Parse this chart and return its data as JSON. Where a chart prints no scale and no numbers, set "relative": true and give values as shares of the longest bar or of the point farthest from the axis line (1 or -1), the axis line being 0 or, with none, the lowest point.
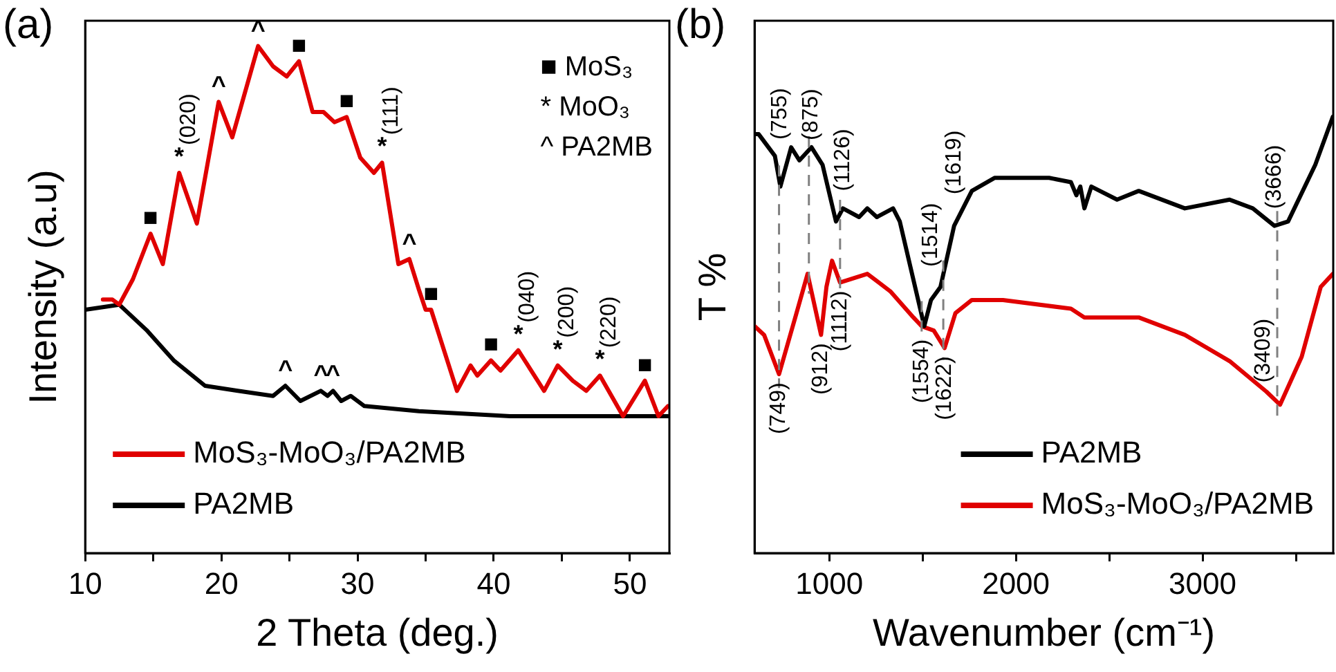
{
  "chart_data": [
    {
      "type": "line",
      "title": "(a)",
      "xlabel": "2 Theta (deg.)",
      "ylabel": "Intensity (a.u)",
      "relative": true,
      "legend": "bottom left",
      "xlim": [
        10,
        52.9
      ],
      "xticks": [
        10,
        {
          "value": 15,
          "label": null
        },
        20,
        {
          "value": 25,
          "label": null
        },
        30,
        {
          "value": 35,
          "label": null
        },
        40,
        {
          "value": 45,
          "label": null
        },
        50
      ],
      "series": [
        {
          "name": "MoS₃-MoO₃/PA2MB",
          "color": "#e00000",
          "x": [
            11.3,
            12,
            12.5,
            13.5,
            14.8,
            15.7,
            16.9,
            18.2,
            19.8,
            20.8,
            22.7,
            23.8,
            24.8,
            25.7,
            26.7,
            27.5,
            28.3,
            29.2,
            30.2,
            31.2,
            31.8,
            33,
            33.8,
            34.5,
            35,
            35.4,
            37.3,
            38.3,
            38.8,
            39.8,
            40.5,
            41.8,
            43.7,
            44.7,
            45.8,
            46.8,
            47.8,
            49.5,
            51.1,
            52.1,
            52.8
          ],
          "values": [
            0.5,
            0.5,
            0.49,
            0.54,
            0.63,
            0.57,
            0.75,
            0.65,
            0.89,
            0.82,
            1,
            0.96,
            0.94,
            0.97,
            0.87,
            0.87,
            0.85,
            0.86,
            0.78,
            0.75,
            0.77,
            0.57,
            0.58,
            0.52,
            0.48,
            0.48,
            0.32,
            0.37,
            0.35,
            0.38,
            0.36,
            0.4,
            0.32,
            0.37,
            0.34,
            0.32,
            0.35,
            0.27,
            0.34,
            0.27,
            0.29
          ]
        },
        {
          "name": "PA2MB",
          "color": "#000000",
          "x": [
            10,
            12.5,
            14.5,
            16.5,
            18.8,
            21.2,
            23.8,
            24.7,
            25.8,
            27.3,
            27.8,
            28.2,
            28.8,
            29.5,
            30.5,
            34.5,
            41.2,
            52.8
          ],
          "values": [
            0.48,
            0.49,
            0.44,
            0.38,
            0.33,
            0.32,
            0.31,
            0.33,
            0.3,
            0.32,
            0.31,
            0.32,
            0.3,
            0.31,
            0.29,
            0.28,
            0.27,
            0.27
          ]
        }
      ],
      "annotations": [
        "■ MoS₃",
        "* MoO₃",
        "^ PA2MB",
        {
          "text": "■",
          "x": 14.8,
          "y": 0.63
        },
        {
          "text": "*",
          "x": 16.9,
          "y": 0.75
        },
        {
          "text": "(020)",
          "x": 16.9,
          "y": 0.75
        },
        {
          "text": "^",
          "x": 19.8,
          "y": 0.89
        },
        {
          "text": "^",
          "x": 22.7,
          "y": 1
        },
        {
          "text": "■",
          "x": 25.7,
          "y": 0.97
        },
        {
          "text": "■",
          "x": 29.2,
          "y": 0.86
        },
        {
          "text": "*",
          "x": 31.8,
          "y": 0.77
        },
        {
          "text": "(111)",
          "x": 31.8,
          "y": 0.77
        },
        {
          "text": "^",
          "x": 33.8,
          "y": 0.58
        },
        {
          "text": "■",
          "x": 35.4,
          "y": 0.48
        },
        {
          "text": "■",
          "x": 39.8,
          "y": 0.38
        },
        {
          "text": "*",
          "x": 41.8,
          "y": 0.4
        },
        {
          "text": "(040)",
          "x": 41.8,
          "y": 0.4
        },
        {
          "text": "*",
          "x": 44.7,
          "y": 0.37
        },
        {
          "text": "(200)",
          "x": 44.7,
          "y": 0.37
        },
        {
          "text": "*",
          "x": 47.8,
          "y": 0.35
        },
        {
          "text": "(220)",
          "x": 47.8,
          "y": 0.35
        },
        {
          "text": "■",
          "x": 51.1,
          "y": 0.34
        },
        {
          "text": "^",
          "x": 24.7,
          "y": 0.33
        },
        {
          "text": "^",
          "x": 27.3,
          "y": 0.32
        },
        {
          "text": "^",
          "x": 28.2,
          "y": 0.32
        }
      ]
    },
    {
      "type": "line",
      "title": "(b)",
      "xlabel": "Wavenumber (cm⁻¹)",
      "ylabel": "T %",
      "relative": true,
      "legend": "bottom right",
      "xlim": [
        600,
        3700
      ],
      "xticks": [
        1000,
        {
          "value": 1500,
          "label": null
        },
        2000,
        {
          "value": 2500,
          "label": null
        },
        3000,
        {
          "value": 3500,
          "label": null
        }
      ],
      "series": [
        {
          "name": "PA2MB",
          "color": "#000000",
          "x": [
            600,
            622,
            709,
            738,
            796,
            840,
            905,
            964,
            1036,
            1073,
            1160,
            1204,
            1255,
            1342,
            1378,
            1509,
            1545,
            1596,
            1669,
            1764,
            1887,
            2178,
            2295,
            2324,
            2345,
            2367,
            2404,
            2542,
            2658,
            2905,
            3145,
            3269,
            3385,
            3458,
            3604,
            3698
          ],
          "values": [
            0.96,
            0.96,
            0.91,
            0.84,
            0.93,
            0.9,
            0.93,
            0.89,
            0.76,
            0.79,
            0.77,
            0.79,
            0.77,
            0.79,
            0.76,
            0.52,
            0.58,
            0.61,
            0.75,
            0.83,
            0.86,
            0.86,
            0.85,
            0.82,
            0.84,
            0.79,
            0.84,
            0.81,
            0.83,
            0.79,
            0.81,
            0.79,
            0.75,
            0.76,
            0.89,
            1
          ]
        },
        {
          "name": "MoS₃-MoO₃/PA2MB",
          "color": "#e00000",
          "x": [
            600,
            651,
            731,
            818,
            884,
            956,
            985,
            1015,
            1058,
            1204,
            1327,
            1451,
            1495,
            1560,
            1618,
            1676,
            1764,
            1931,
            2295,
            2367,
            2658,
            2905,
            3145,
            3342,
            3415,
            3531,
            3633,
            3698
          ],
          "values": [
            0.52,
            0.5,
            0.41,
            0.54,
            0.64,
            0.5,
            0.61,
            0.67,
            0.62,
            0.64,
            0.6,
            0.54,
            0.52,
            0.51,
            0.47,
            0.55,
            0.58,
            0.58,
            0.56,
            0.54,
            0.54,
            0.5,
            0.44,
            0.37,
            0.34,
            0.45,
            0.61,
            0.64
          ]
        }
      ],
      "ref_lines": [
        {
          "axis": "x",
          "value": 731,
          "color": "#808080",
          "line_style": "dashed"
        },
        {
          "axis": "x",
          "value": 891,
          "color": "#808080",
          "line_style": "dashed"
        },
        {
          "axis": "x",
          "value": 1058,
          "color": "#808080",
          "line_style": "dashed"
        },
        {
          "axis": "x",
          "value": 1495,
          "color": "#808080",
          "line_style": "dashed"
        },
        {
          "axis": "x",
          "value": 1611,
          "color": "#808080",
          "line_style": "dashed"
        },
        {
          "axis": "x",
          "value": 3400,
          "color": "#808080",
          "line_style": "dashed"
        }
      ],
      "annotations": [
        {
          "text": "(755)",
          "x": 738,
          "y": 0.84
        },
        {
          "text": "(875)",
          "x": 905,
          "y": 0.93
        },
        {
          "text": "(1126)",
          "x": 1073,
          "y": 0.79
        },
        {
          "text": "(1514)",
          "x": 1545,
          "y": 0.58
        },
        {
          "text": "(1619)",
          "x": 1669,
          "y": 0.75
        },
        {
          "text": "(3666)",
          "x": 3385,
          "y": 0.75
        },
        {
          "text": "(749)",
          "x": 731,
          "y": 0.41
        },
        {
          "text": "(912)",
          "x": 956,
          "y": 0.5
        },
        {
          "text": "(1112)",
          "x": 1058,
          "y": 0.62
        },
        {
          "text": "(1554)",
          "x": 1495,
          "y": 0.52
        },
        {
          "text": "(1622)",
          "x": 1618,
          "y": 0.47
        },
        {
          "text": "(3409)",
          "x": 3415,
          "y": 0.34
        }
      ]
    }
  ]
}
